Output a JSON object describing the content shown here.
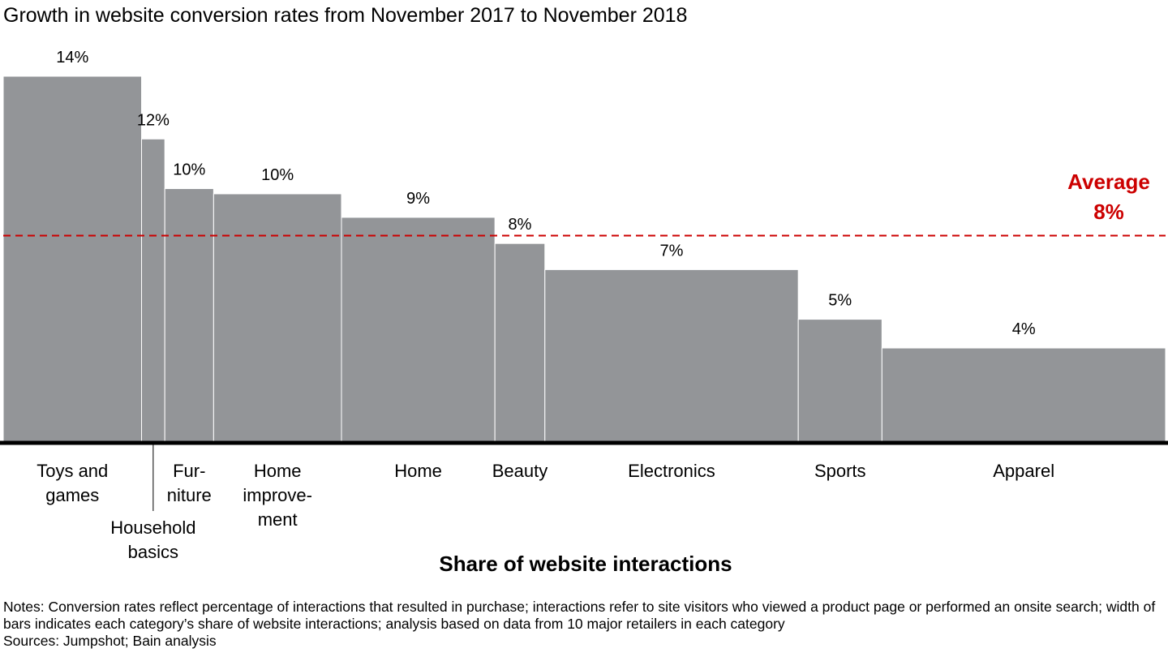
{
  "chart_data": {
    "type": "variwide",
    "title": "Growth in website conversion rates from November 2017 to November 2018",
    "x_label": "Share of website interactions",
    "categories": [
      [
        "Toys and",
        "games"
      ],
      [
        "Household",
        "basics"
      ],
      [
        "Fur-",
        "niture"
      ],
      [
        "Home",
        "improve-",
        "ment"
      ],
      [
        "Home"
      ],
      [
        "Beauty"
      ],
      [
        "Electronics"
      ],
      [
        "Sports"
      ],
      [
        "Apparel"
      ]
    ],
    "widths": [
      11.9,
      2.0,
      4.2,
      11.0,
      13.2,
      4.3,
      21.8,
      7.2,
      24.4
    ],
    "values": [
      14.0,
      11.6,
      9.7,
      9.5,
      8.6,
      7.6,
      6.6,
      4.7,
      3.6
    ],
    "value_labels": [
      "14%",
      "12%",
      "10%",
      "10%",
      "9%",
      "8%",
      "7%",
      "5%",
      "4%"
    ],
    "color": "#939598",
    "xlim": [
      0,
      100
    ],
    "ylim": [
      0,
      14
    ],
    "average": {
      "label": "Average",
      "value": 7.9,
      "value_label": "8%",
      "color": "#cc0000"
    },
    "notes": "Notes: Conversion rates reflect percentage of interactions that resulted in purchase; interactions refer to site visitors who viewed a product page or performed an onsite search; width of bars indicates each category’s share of website interactions; analysis based on data from 10 major retailers in each category",
    "sources": "Sources: Jumpshot; Bain analysis"
  }
}
